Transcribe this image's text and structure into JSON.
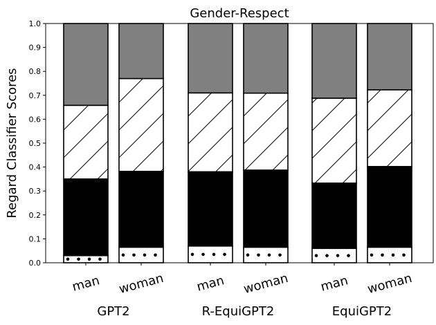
{
  "chart_data": {
    "type": "bar",
    "stacked": true,
    "title": "Gender-Respect",
    "ylabel": "Regard Classifier Scores",
    "xlabel": "",
    "ylim": [
      0,
      1.0
    ],
    "yticks": [
      "0.0",
      "0.1",
      "0.2",
      "0.3",
      "0.4",
      "0.5",
      "0.6",
      "0.7",
      "0.8",
      "0.9",
      "1.0"
    ],
    "grid": false,
    "groups": [
      "GPT2",
      "R-EquiGPT2",
      "EquiGPT2"
    ],
    "categories": [
      "man",
      "woman",
      "man",
      "woman",
      "man",
      "woman"
    ],
    "group_of_category": [
      0,
      0,
      1,
      1,
      2,
      2
    ],
    "segments": [
      {
        "fill": "#ffffff",
        "pattern": "dots",
        "values": [
          0.03,
          0.065,
          0.07,
          0.065,
          0.06,
          0.065
        ]
      },
      {
        "fill": "#000000",
        "pattern": "solid",
        "values": [
          0.32,
          0.317,
          0.31,
          0.322,
          0.273,
          0.337
        ]
      },
      {
        "fill": "#ffffff",
        "pattern": "diagonal-hatch",
        "values": [
          0.308,
          0.388,
          0.33,
          0.322,
          0.355,
          0.321
        ]
      },
      {
        "fill": "#808080",
        "pattern": "solid",
        "values": [
          0.342,
          0.23,
          0.29,
          0.291,
          0.312,
          0.277
        ]
      }
    ]
  }
}
